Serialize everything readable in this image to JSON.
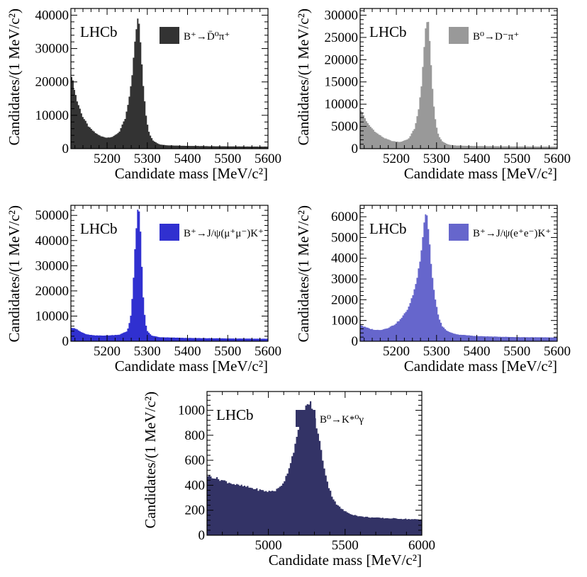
{
  "figure_title": "",
  "chart_data": [
    {
      "type": "area",
      "xlabel": "Candidate mass [MeV/c²]",
      "ylabel": "Candidates/(1 MeV/c²)",
      "label": "LHCb",
      "legend": "B⁺→D̄⁰π⁺",
      "color": "#333333",
      "xlim": [
        5110,
        5600
      ],
      "ylim": [
        0,
        42000
      ],
      "xticks": [
        5200,
        5300,
        5400,
        5500,
        5600
      ],
      "yticks": [
        0,
        10000,
        20000,
        30000,
        40000
      ],
      "x": [
        5110,
        5125,
        5140,
        5155,
        5170,
        5185,
        5200,
        5215,
        5230,
        5245,
        5255,
        5262,
        5268,
        5273,
        5277,
        5280,
        5283,
        5287,
        5292,
        5298,
        5305,
        5315,
        5330,
        5350,
        5400,
        5450,
        5500,
        5550,
        5600
      ],
      "y": [
        23000,
        14500,
        9500,
        6500,
        4800,
        3700,
        3300,
        3600,
        5000,
        9000,
        15000,
        22000,
        30000,
        36500,
        39500,
        38000,
        33000,
        25000,
        16000,
        9000,
        4500,
        2400,
        1300,
        1000,
        850,
        750,
        700,
        650,
        620
      ]
    },
    {
      "type": "area",
      "xlabel": "Candidate mass [MeV/c²]",
      "ylabel": "Candidates/(1 MeV/c²)",
      "label": "LHCb",
      "legend": "B⁰→D⁻π⁺",
      "color": "#999999",
      "xlim": [
        5110,
        5600
      ],
      "ylim": [
        0,
        31500
      ],
      "xticks": [
        5200,
        5300,
        5400,
        5500,
        5600
      ],
      "yticks": [
        0,
        5000,
        10000,
        15000,
        20000,
        25000,
        30000
      ],
      "x": [
        5110,
        5130,
        5150,
        5170,
        5190,
        5210,
        5230,
        5245,
        5255,
        5262,
        5268,
        5273,
        5277,
        5280,
        5283,
        5287,
        5292,
        5298,
        5305,
        5315,
        5330,
        5350,
        5400,
        5450,
        5500,
        5550,
        5600
      ],
      "y": [
        9000,
        5500,
        3600,
        2400,
        1700,
        1500,
        2200,
        4500,
        8500,
        14000,
        21000,
        27000,
        29500,
        28500,
        24000,
        18000,
        11000,
        6000,
        3000,
        1600,
        900,
        700,
        600,
        550,
        500,
        480,
        460
      ]
    },
    {
      "type": "area",
      "xlabel": "Candidate mass [MeV/c²]",
      "ylabel": "Candidates/(1 MeV/c²)",
      "label": "LHCb",
      "legend": "B⁺→J/ψ(μ⁺μ⁻)K⁺",
      "color": "#3030d0",
      "xlim": [
        5110,
        5600
      ],
      "ylim": [
        0,
        54000
      ],
      "xticks": [
        5200,
        5300,
        5400,
        5500,
        5600
      ],
      "yticks": [
        0,
        10000,
        20000,
        30000,
        40000,
        50000
      ],
      "x": [
        5110,
        5120,
        5135,
        5150,
        5170,
        5200,
        5230,
        5250,
        5258,
        5264,
        5268,
        5272,
        5275,
        5278,
        5280,
        5283,
        5286,
        5290,
        5295,
        5300,
        5310,
        5330,
        5400,
        5500,
        5600
      ],
      "y": [
        5500,
        5200,
        3700,
        2700,
        2300,
        2300,
        2600,
        4000,
        9000,
        20000,
        32000,
        44000,
        50000,
        52500,
        51000,
        44000,
        32000,
        18000,
        8000,
        4200,
        2300,
        1600,
        1300,
        1100,
        1000
      ]
    },
    {
      "type": "area",
      "xlabel": "Candidate mass [MeV/c²]",
      "ylabel": "Candidates/(1 MeV/c²)",
      "label": "LHCb",
      "legend": "B⁺→J/ψ(e⁺e⁻)K⁺",
      "color": "#6666cc",
      "xlim": [
        5110,
        5600
      ],
      "ylim": [
        0,
        6550
      ],
      "xticks": [
        5200,
        5300,
        5400,
        5500,
        5600
      ],
      "yticks": [
        0,
        1000,
        2000,
        3000,
        4000,
        5000,
        6000
      ],
      "x": [
        5110,
        5120,
        5135,
        5150,
        5165,
        5180,
        5195,
        5210,
        5225,
        5235,
        5245,
        5252,
        5258,
        5263,
        5267,
        5270,
        5273,
        5276,
        5279,
        5283,
        5287,
        5292,
        5298,
        5305,
        5315,
        5330,
        5350,
        5400,
        5450,
        5500,
        5550,
        5600
      ],
      "y": [
        800,
        700,
        600,
        540,
        560,
        650,
        800,
        1050,
        1450,
        1850,
        2500,
        3100,
        3800,
        4600,
        5300,
        5900,
        6200,
        6150,
        5600,
        4700,
        3700,
        2700,
        1900,
        1200,
        700,
        450,
        330,
        250,
        220,
        200,
        190,
        180
      ]
    },
    {
      "type": "area",
      "xlabel": "Candidate mass [MeV/c²]",
      "ylabel": "Candidates/(1 MeV/c²)",
      "label": "LHCb",
      "legend": "B⁰→K*⁰γ",
      "color": "#333366",
      "xlim": [
        4600,
        6000
      ],
      "ylim": [
        0,
        1150
      ],
      "xticks": [
        5000,
        5500,
        6000
      ],
      "yticks": [
        0,
        200,
        400,
        600,
        800,
        1000
      ],
      "x": [
        4600,
        4650,
        4700,
        4750,
        4800,
        4850,
        4900,
        4950,
        5000,
        5050,
        5080,
        5110,
        5140,
        5170,
        5200,
        5230,
        5260,
        5280,
        5300,
        5330,
        5360,
        5390,
        5420,
        5450,
        5500,
        5550,
        5600,
        5700,
        5800,
        5900,
        6000
      ],
      "y": [
        480,
        460,
        440,
        420,
        400,
        390,
        375,
        360,
        350,
        360,
        390,
        450,
        560,
        700,
        850,
        980,
        1060,
        1050,
        960,
        780,
        570,
        400,
        300,
        240,
        190,
        165,
        150,
        140,
        135,
        130,
        125
      ]
    }
  ]
}
